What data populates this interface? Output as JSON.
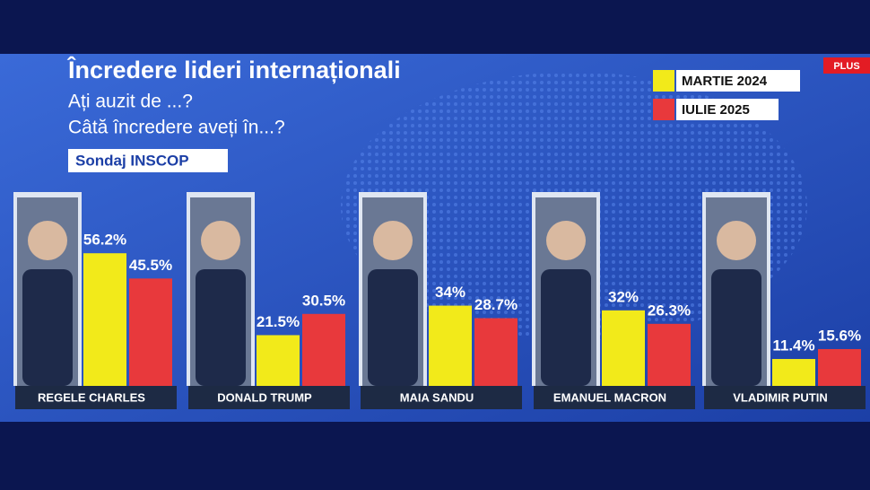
{
  "chart_data": {
    "type": "bar",
    "title": "Încredere lideri internaționali",
    "subtitle": [
      "Ați auzit de ...?",
      "Câtă încredere aveți în...?"
    ],
    "source": "Sondaj INSCOP",
    "logo": "PLUS",
    "categories": [
      "REGELE CHARLES",
      "DONALD TRUMP",
      "MAIA SANDU",
      "EMANUEL MACRON",
      "VLADIMIR PUTIN"
    ],
    "series": [
      {
        "name": "MARTIE 2024",
        "color": "#f2ea1a",
        "values": [
          56.2,
          21.5,
          34,
          32,
          11.4
        ],
        "value_labels": [
          "56.2%",
          "21.5%",
          "34%",
          "32%",
          "11.4%"
        ]
      },
      {
        "name": "IULIE 2025",
        "color": "#e8393c",
        "values": [
          45.5,
          30.5,
          28.7,
          26.3,
          15.6
        ],
        "value_labels": [
          "45.5%",
          "30.5%",
          "28.7%",
          "26.3%",
          "15.6%"
        ]
      }
    ]
  }
}
